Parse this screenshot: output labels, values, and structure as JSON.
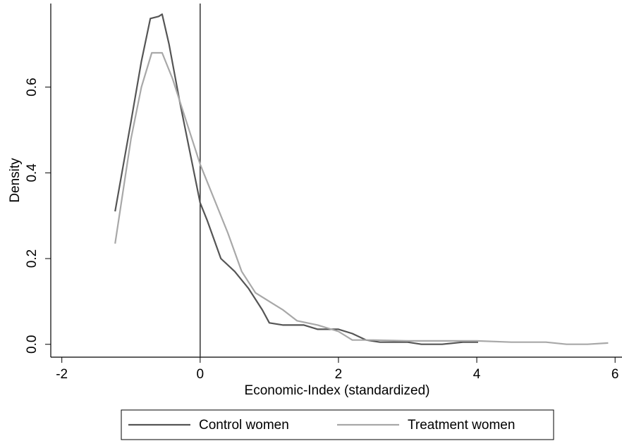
{
  "chart_data": {
    "type": "line",
    "x_label": "Economic-Index (standardized)",
    "y_label": "Density",
    "xlim": [
      -2.16,
      6.1
    ],
    "ylim": [
      -0.03,
      0.795
    ],
    "xticks": [
      -2,
      0,
      2,
      4,
      6
    ],
    "yticks": [
      {
        "value": 0,
        "label": "0.0"
      },
      {
        "value": 0.2,
        "label": "0.2"
      },
      {
        "value": 0.4,
        "label": "0.4"
      },
      {
        "value": 0.6,
        "label": "0.6"
      }
    ],
    "xline": 0,
    "legend": "bottom",
    "series": [
      {
        "name": "Control women",
        "color": "#555555",
        "x": [
          -1.23,
          -1.0,
          -0.85,
          -0.72,
          -0.6,
          -0.55,
          -0.45,
          -0.3,
          -0.15,
          0,
          0.1,
          0.3,
          0.5,
          0.7,
          0.9,
          1.0,
          1.2,
          1.5,
          1.7,
          2.0,
          2.2,
          2.4,
          2.6,
          3.0,
          3.2,
          3.5,
          3.8,
          4.02
        ],
        "values": [
          0.31,
          0.52,
          0.66,
          0.76,
          0.765,
          0.77,
          0.7,
          0.57,
          0.45,
          0.33,
          0.29,
          0.2,
          0.17,
          0.13,
          0.08,
          0.05,
          0.045,
          0.045,
          0.035,
          0.035,
          0.025,
          0.01,
          0.005,
          0.005,
          0.0,
          0.0,
          0.005,
          0.005
        ]
      },
      {
        "name": "Treatment women",
        "color": "#a8a8a8",
        "x": [
          -1.23,
          -1.0,
          -0.85,
          -0.7,
          -0.55,
          -0.4,
          -0.2,
          0,
          0.2,
          0.4,
          0.6,
          0.8,
          1.0,
          1.2,
          1.4,
          1.7,
          2.0,
          2.2,
          2.5,
          3.0,
          3.5,
          4.0,
          4.5,
          5.0,
          5.3,
          5.6,
          5.9
        ],
        "values": [
          0.235,
          0.48,
          0.6,
          0.68,
          0.68,
          0.62,
          0.52,
          0.42,
          0.34,
          0.26,
          0.17,
          0.12,
          0.1,
          0.08,
          0.055,
          0.045,
          0.03,
          0.01,
          0.01,
          0.008,
          0.008,
          0.008,
          0.005,
          0.005,
          0.0,
          0.0,
          0.003
        ]
      }
    ]
  }
}
